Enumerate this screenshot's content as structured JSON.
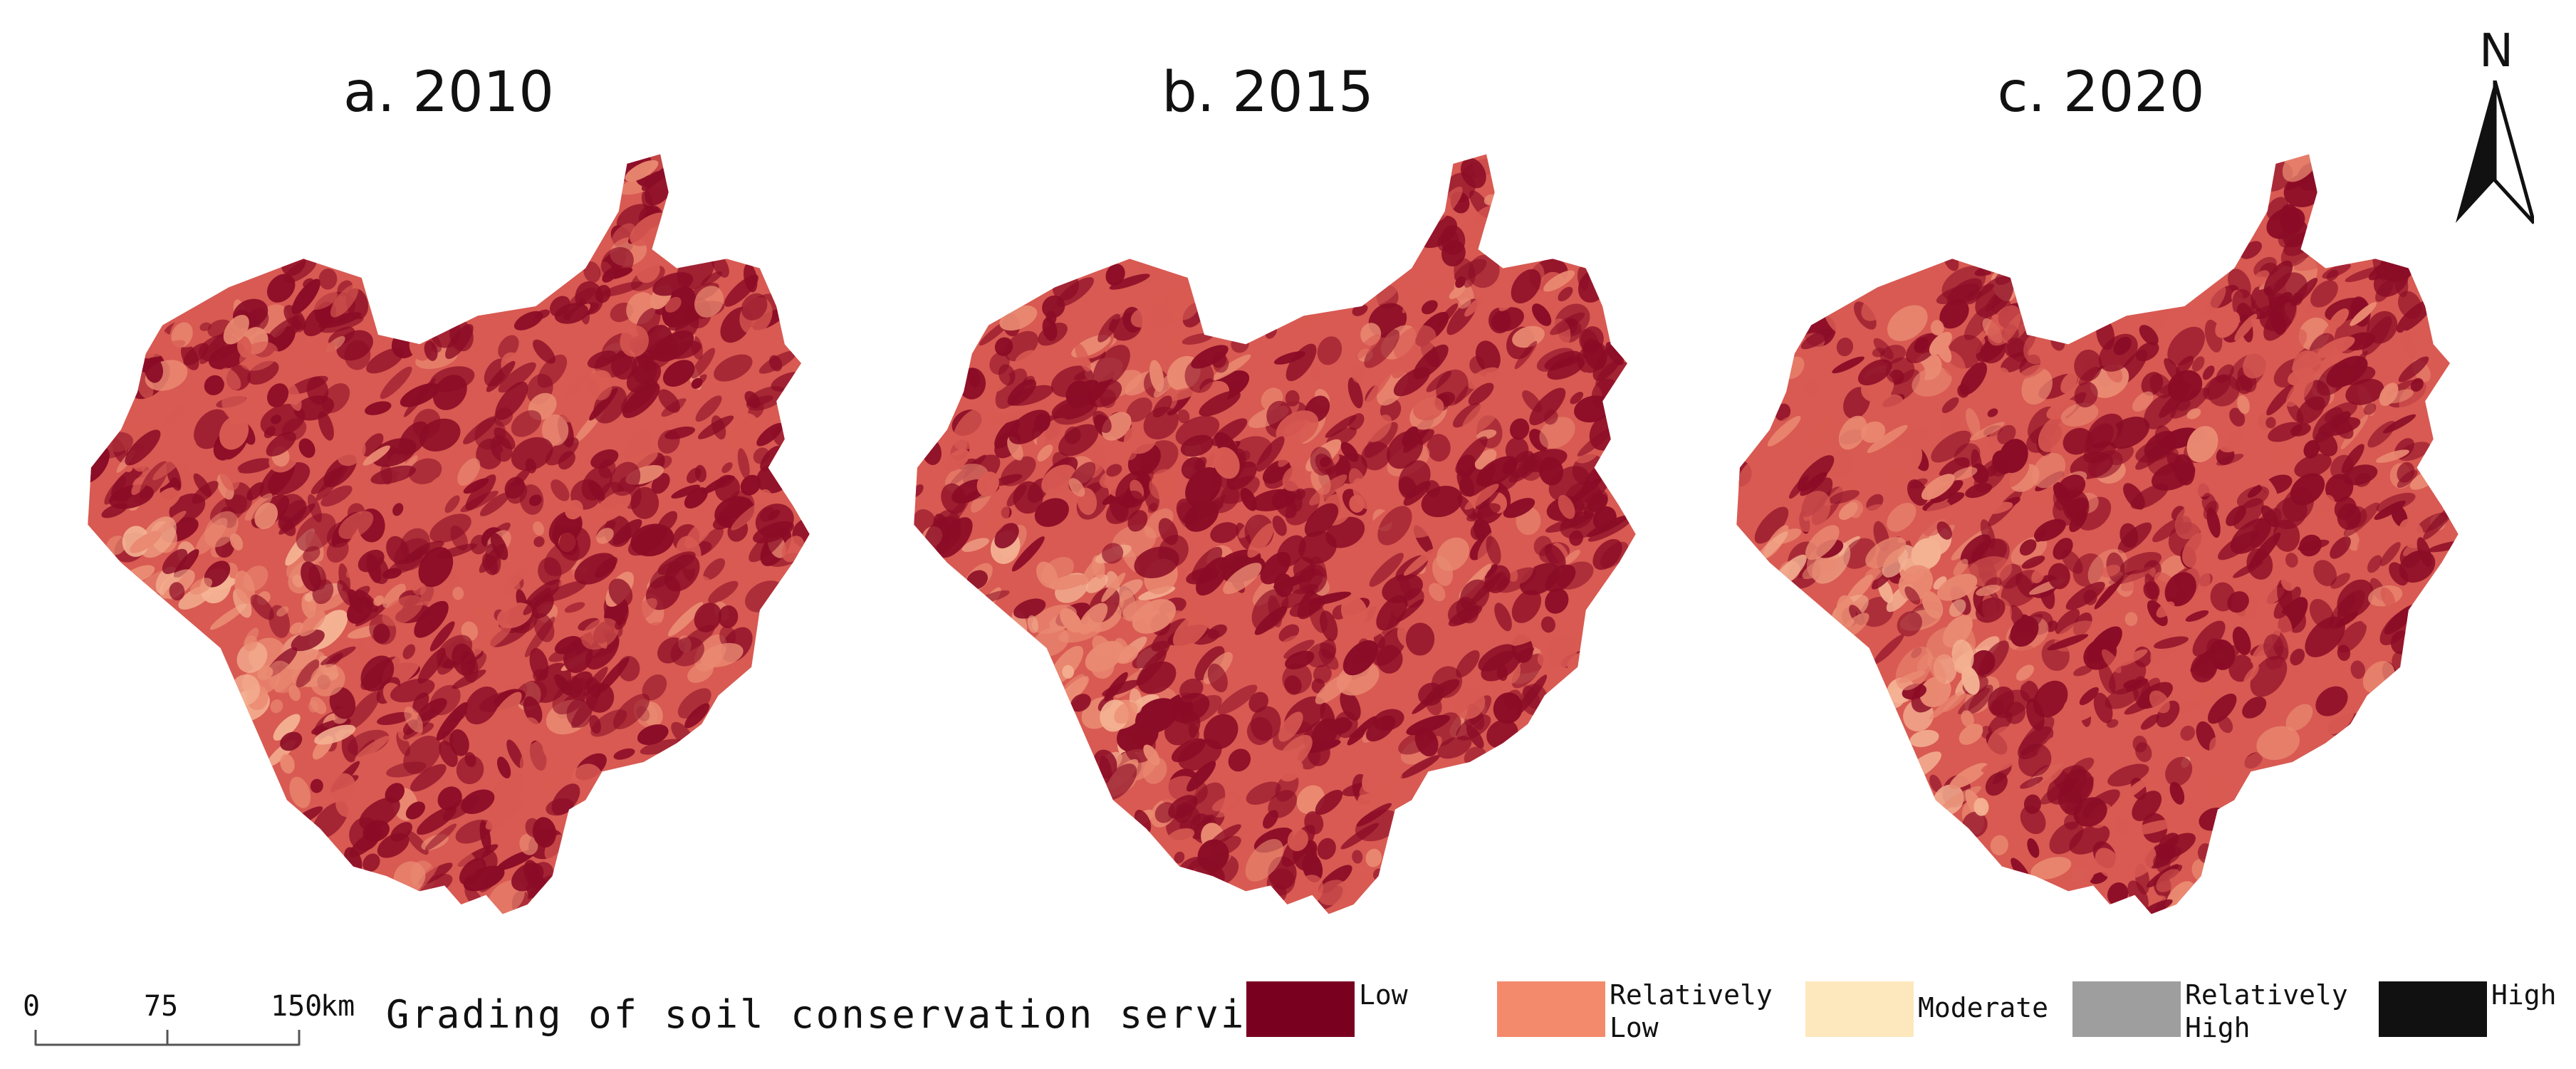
{
  "panels": [
    {
      "id": "a",
      "title": "a. 2010"
    },
    {
      "id": "b",
      "title": "b. 2015"
    },
    {
      "id": "c",
      "title": "c. 2020"
    }
  ],
  "north_arrow": {
    "label": "N",
    "icon": "north-arrow-icon"
  },
  "scale_bar": {
    "ticks": [
      "0",
      "75",
      "150"
    ],
    "unit": "km"
  },
  "legend": {
    "title": "Grading of soil conservation services",
    "items": [
      {
        "label": "Low",
        "color": "#7a0020"
      },
      {
        "label": "Relatively\nLow",
        "color": "#f48a6c"
      },
      {
        "label": "Moderate",
        "color": "#fde8bd"
      },
      {
        "label": "Relatively\nHigh",
        "color": "#9e9e9e"
      },
      {
        "label": "High",
        "color": "#111111"
      }
    ]
  },
  "map_colors": {
    "dominant": "#8b0c26",
    "secondary": "#d85a52",
    "light": "#ea8a72",
    "highlight": "#f4b293"
  }
}
